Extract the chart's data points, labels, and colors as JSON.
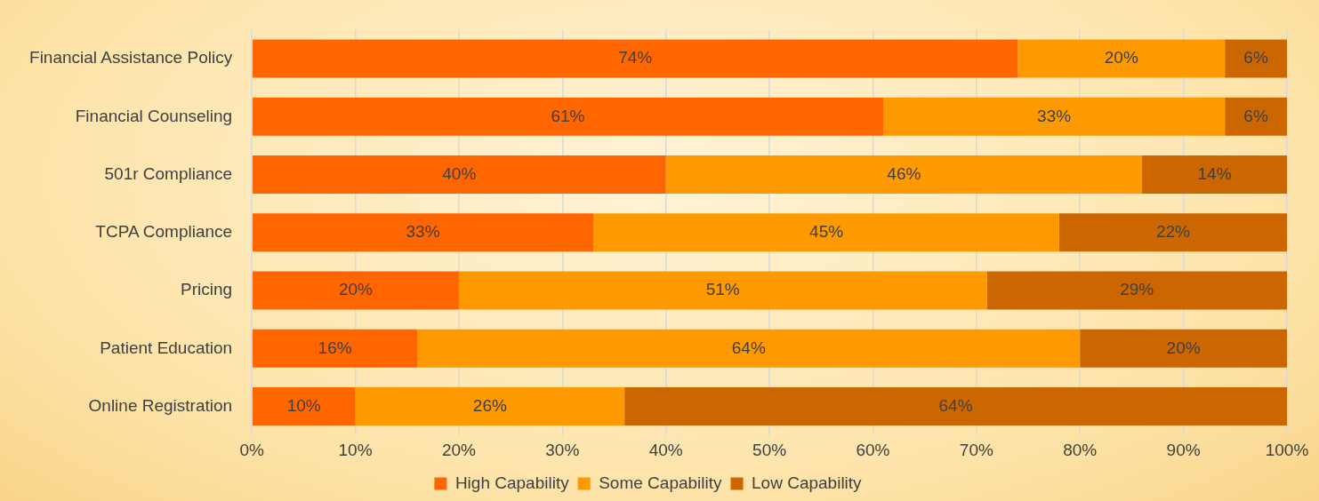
{
  "chart_data": {
    "type": "bar",
    "orientation": "horizontal",
    "stacked": true,
    "categories": [
      "Financial Assistance Policy",
      "Financial Counseling",
      "501r Compliance",
      "TCPA Compliance",
      "Pricing",
      "Patient Education",
      "Online Registration"
    ],
    "series": [
      {
        "name": "High Capability",
        "color": "#ff6600",
        "values": [
          74,
          61,
          40,
          33,
          20,
          16,
          10
        ],
        "value_labels": [
          "74%",
          "61%",
          "40%",
          "33%",
          "20%",
          "16%",
          "10%"
        ]
      },
      {
        "name": "Some Capability",
        "color": "#ff9900",
        "values": [
          20,
          33,
          46,
          45,
          51,
          64,
          26
        ],
        "value_labels": [
          "20%",
          "33%",
          "46%",
          "45%",
          "51%",
          "64%",
          "26%"
        ]
      },
      {
        "name": "Low Capability",
        "color": "#cc6600",
        "values": [
          6,
          6,
          14,
          22,
          29,
          20,
          64
        ],
        "value_labels": [
          "6%",
          "6%",
          "14%",
          "22%",
          "29%",
          "20%",
          "64%"
        ]
      }
    ],
    "xlim": [
      0,
      100
    ],
    "xticks": [
      {
        "value": 0,
        "label": "0%"
      },
      {
        "value": 10,
        "label": "10%"
      },
      {
        "value": 20,
        "label": "20%"
      },
      {
        "value": 30,
        "label": "30%"
      },
      {
        "value": 40,
        "label": "40%"
      },
      {
        "value": 50,
        "label": "50%"
      },
      {
        "value": 60,
        "label": "60%"
      },
      {
        "value": 70,
        "label": "70%"
      },
      {
        "value": 80,
        "label": "80%"
      },
      {
        "value": 90,
        "label": "90%"
      },
      {
        "value": 100,
        "label": "100%"
      }
    ],
    "grid": "x",
    "legend": "bottom"
  }
}
